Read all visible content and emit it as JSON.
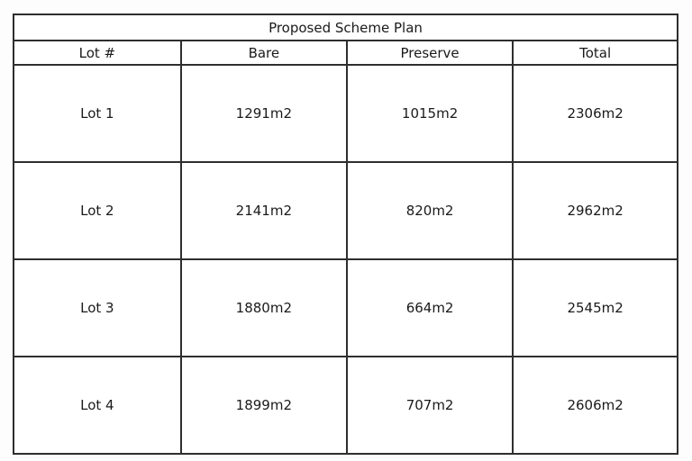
{
  "table": {
    "title": "Proposed Scheme Plan",
    "columns": {
      "lot": "Lot #",
      "bare": "Bare",
      "preserve": "Preserve",
      "total": "Total"
    },
    "rows": [
      {
        "lot": "Lot 1",
        "bare": "1291m2",
        "preserve": "1015m2",
        "total": "2306m2"
      },
      {
        "lot": "Lot 2",
        "bare": "2141m2",
        "preserve": "820m2",
        "total": "2962m2"
      },
      {
        "lot": "Lot 3",
        "bare": "1880m2",
        "preserve": "664m2",
        "total": "2545m2"
      },
      {
        "lot": "Lot 4",
        "bare": "1899m2",
        "preserve": "707m2",
        "total": "2606m2"
      }
    ],
    "border_color": "#2e2e2e",
    "background_color": "#ffffff"
  }
}
